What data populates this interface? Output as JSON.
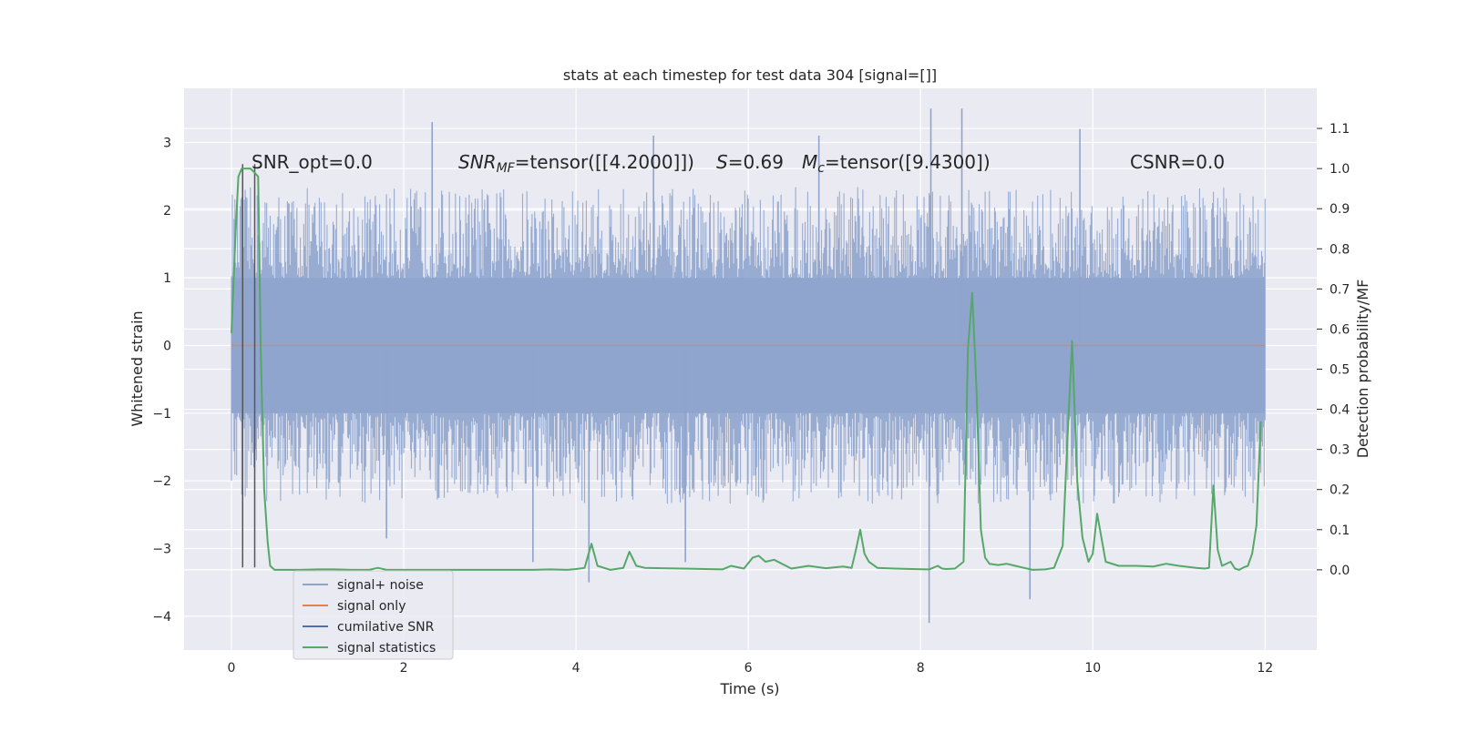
{
  "chart_data": {
    "type": "line",
    "title": "stats at each timestep for test data 304 [signal=[]]",
    "xlabel": "Time (s)",
    "ylabel": "Whitened strain",
    "ylabel_right": "Detection probability/MF",
    "xlim": [
      -0.55,
      12.6
    ],
    "ylim": [
      -4.5,
      3.8
    ],
    "ylim_right": [
      -0.2,
      1.2
    ],
    "x_ticks": [
      0,
      2,
      4,
      6,
      8,
      10,
      12
    ],
    "x_tick_labels": [
      "0",
      "2",
      "4",
      "6",
      "8",
      "10",
      "12"
    ],
    "y_ticks": [
      -4,
      -3,
      -2,
      -1,
      0,
      1,
      2,
      3
    ],
    "y_tick_labels": [
      "−4",
      "−3",
      "−2",
      "−1",
      "0",
      "1",
      "2",
      "3"
    ],
    "y_right_ticks": [
      0.0,
      0.1,
      0.2,
      0.3,
      0.4,
      0.5,
      0.6,
      0.7,
      0.8,
      0.9,
      1.0,
      1.1
    ],
    "y_right_tick_labels": [
      "0.0",
      "0.1",
      "0.2",
      "0.3",
      "0.4",
      "0.5",
      "0.6",
      "0.7",
      "0.8",
      "0.9",
      "1.0",
      "1.1"
    ],
    "grid": true,
    "legend_position": "lower-left",
    "annotations": {
      "snr_opt": "SNR_opt=0.0",
      "snr_mf": "SNR",
      "snr_mf_sub": "MF",
      "snr_mf_value": "=tensor([[4.2000]])",
      "s_sym": "S",
      "s_value": "=0.69",
      "mc_sym": "M",
      "mc_sub": "c",
      "mc_value": "=tensor([9.4300])",
      "csnr": "CSNR=0.0"
    },
    "series": [
      {
        "name": "signal+ noise",
        "color": "#8fa4cd",
        "kind": "noise-band",
        "x_range": [
          0,
          12
        ],
        "band_core": [
          -1.0,
          1.0
        ],
        "typical_envelope": [
          -1.8,
          1.8
        ],
        "extremes": [
          {
            "x": 2.33,
            "y": 3.3
          },
          {
            "x": 8.12,
            "y": 3.5
          },
          {
            "x": 8.48,
            "y": 3.5
          },
          {
            "x": 9.85,
            "y": 3.2
          },
          {
            "x": 6.82,
            "y": 3.1
          },
          {
            "x": 4.9,
            "y": 3.1
          },
          {
            "x": 8.1,
            "y": -4.1
          },
          {
            "x": 9.27,
            "y": -3.75
          },
          {
            "x": 4.15,
            "y": -3.5
          },
          {
            "x": 5.27,
            "y": -3.2
          },
          {
            "x": 3.5,
            "y": -3.2
          },
          {
            "x": 1.8,
            "y": -2.85
          }
        ]
      },
      {
        "name": "signal only",
        "color": "#dd8452",
        "x": [
          0,
          12
        ],
        "y": [
          0,
          0
        ]
      },
      {
        "name": "cumilative SNR",
        "color": "#4c72b0",
        "x": [],
        "y": []
      },
      {
        "name": "signal statistics",
        "color": "#55a868",
        "axis": "right",
        "x": [
          0.0,
          0.05,
          0.08,
          0.12,
          0.17,
          0.22,
          0.27,
          0.31,
          0.34,
          0.38,
          0.42,
          0.45,
          0.5,
          0.6,
          0.8,
          1.0,
          1.2,
          1.4,
          1.6,
          1.7,
          1.8,
          2.0,
          2.5,
          3.0,
          3.5,
          3.7,
          3.9,
          4.0,
          4.1,
          4.18,
          4.25,
          4.4,
          4.55,
          4.62,
          4.7,
          4.8,
          5.0,
          5.5,
          5.7,
          5.8,
          5.95,
          6.05,
          6.12,
          6.2,
          6.3,
          6.5,
          6.7,
          6.9,
          7.1,
          7.2,
          7.25,
          7.3,
          7.35,
          7.4,
          7.5,
          7.7,
          7.9,
          8.1,
          8.2,
          8.25,
          8.3,
          8.4,
          8.5,
          8.55,
          8.6,
          8.65,
          8.7,
          8.75,
          8.8,
          8.9,
          9.0,
          9.1,
          9.2,
          9.3,
          9.45,
          9.55,
          9.65,
          9.7,
          9.76,
          9.82,
          9.88,
          9.95,
          10.0,
          10.05,
          10.15,
          10.3,
          10.5,
          10.7,
          10.85,
          11.0,
          11.2,
          11.3,
          11.35,
          11.4,
          11.45,
          11.5,
          11.6,
          11.65,
          11.7,
          11.75,
          11.8,
          11.85,
          11.9,
          11.95
        ],
        "y": [
          0.59,
          0.85,
          0.98,
          1.0,
          1.0,
          1.0,
          0.99,
          0.98,
          0.55,
          0.2,
          0.07,
          0.01,
          0.0,
          0.0,
          0.0,
          0.001,
          0.001,
          0.0,
          0.0,
          0.005,
          0.0,
          0.0,
          0.0,
          0.0,
          0.0,
          0.001,
          0.0,
          0.002,
          0.005,
          0.065,
          0.01,
          0.0,
          0.005,
          0.045,
          0.01,
          0.005,
          0.004,
          0.002,
          0.001,
          0.01,
          0.003,
          0.03,
          0.035,
          0.02,
          0.025,
          0.003,
          0.01,
          0.004,
          0.008,
          0.005,
          0.05,
          0.1,
          0.04,
          0.02,
          0.005,
          0.003,
          0.002,
          0.001,
          0.01,
          0.003,
          0.002,
          0.003,
          0.02,
          0.55,
          0.69,
          0.45,
          0.1,
          0.03,
          0.015,
          0.012,
          0.015,
          0.01,
          0.005,
          0.0,
          0.001,
          0.005,
          0.06,
          0.3,
          0.57,
          0.22,
          0.08,
          0.02,
          0.04,
          0.14,
          0.02,
          0.01,
          0.01,
          0.008,
          0.015,
          0.01,
          0.005,
          0.003,
          0.005,
          0.21,
          0.05,
          0.01,
          0.02,
          0.003,
          0.0,
          0.006,
          0.01,
          0.04,
          0.11,
          0.37
        ]
      }
    ],
    "vertical_markers": {
      "color": "#555555",
      "x": [
        0.13,
        0.27
      ],
      "y_top": 2.68,
      "y_bottom": -3.28
    }
  }
}
